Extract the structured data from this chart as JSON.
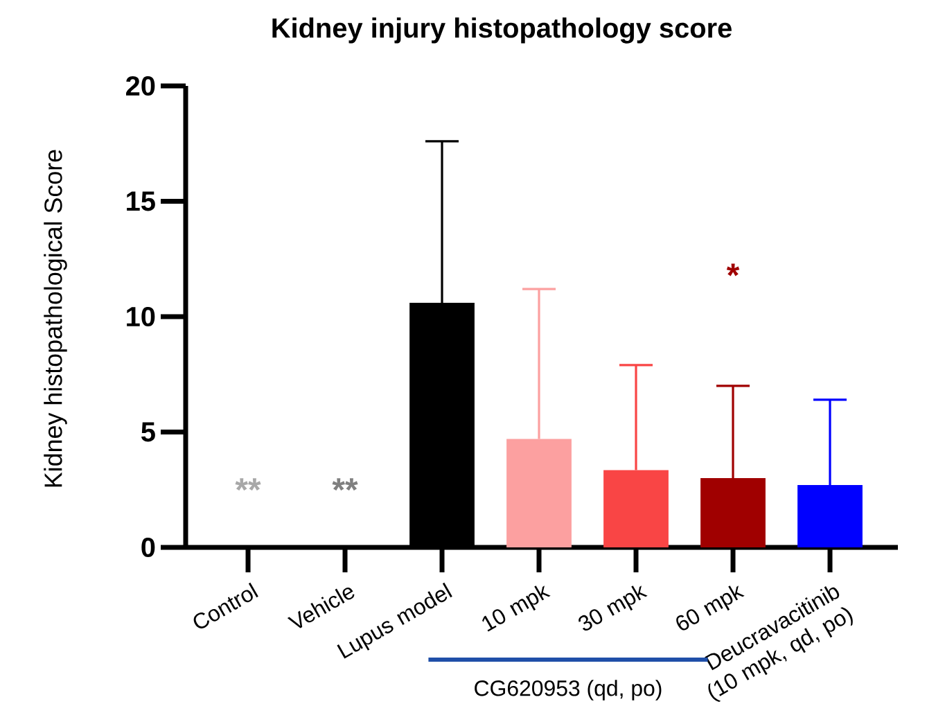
{
  "chart_data": {
    "type": "bar",
    "title": "Kidney injury histopathology score",
    "ylabel": "Kidney histopathological Score",
    "categories": [
      "Control",
      "Vehicle",
      "Lupus model",
      "10 mpk",
      "30 mpk",
      "60 mpk",
      "Deucravacitinib (10 mpk, qd, po)"
    ],
    "values": [
      0,
      0,
      10.6,
      4.7,
      3.35,
      3.0,
      2.7
    ],
    "errors": [
      null,
      null,
      [
        10.6,
        17.6
      ],
      [
        4.7,
        11.2
      ],
      [
        3.35,
        7.9
      ],
      [
        3.0,
        7.0
      ],
      [
        2.7,
        6.4
      ]
    ],
    "colors": [
      null,
      null,
      "#000000",
      "#fca0a0",
      "#f94545",
      "#a00000",
      "#0000ff"
    ],
    "ylim": [
      0,
      20
    ],
    "yticks": [
      0,
      5,
      10,
      15,
      20
    ],
    "annotations": [
      "**",
      "**",
      "*",
      "CG620953 (qd, po)"
    ]
  }
}
